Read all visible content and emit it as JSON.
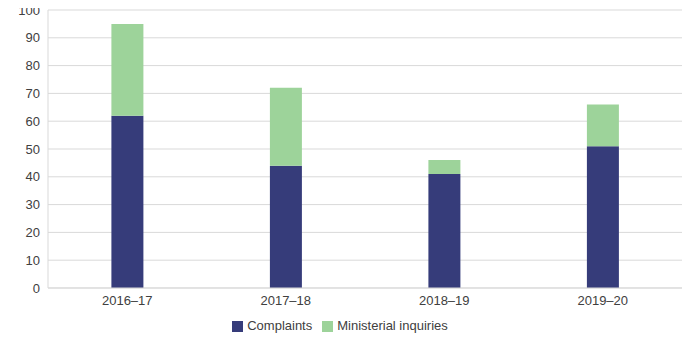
{
  "chart_data": {
    "type": "bar",
    "categories": [
      "2016–17",
      "2017–18",
      "2018–19",
      "2019–20"
    ],
    "series": [
      {
        "name": "Complaints",
        "color": "#363c7a",
        "values": [
          62,
          44,
          41,
          51
        ]
      },
      {
        "name": "Ministerial inquiries",
        "color": "#9dd39a",
        "values": [
          33,
          28,
          5,
          15
        ]
      }
    ],
    "stacked": true,
    "ylim": [
      0,
      100
    ],
    "yticks": [
      0,
      10,
      20,
      30,
      40,
      50,
      60,
      70,
      80,
      90,
      100
    ],
    "grid": true,
    "legend": "bottom"
  }
}
